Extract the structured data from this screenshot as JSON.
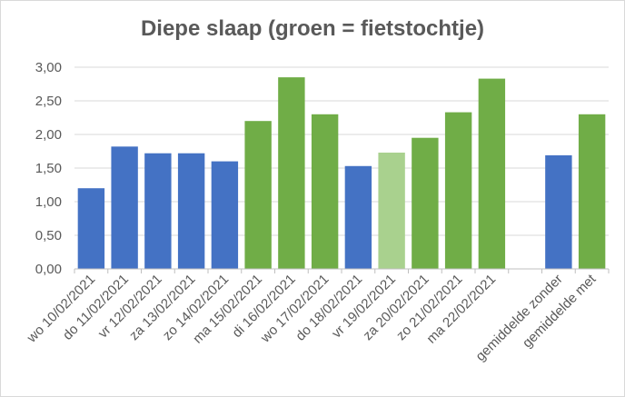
{
  "chart_data": {
    "type": "bar",
    "title": "Diepe slaap (groen = fietstochtje)",
    "categories": [
      "wo 10/02/2021",
      "do 11/02/2021",
      "vr 12/02/2021",
      "za 13/02/2021",
      "zo 14/02/2021",
      "ma 15/02/2021",
      "di 16/02/2021",
      "wo 17/02/2021",
      "do 18/02/2021",
      "vr 19/02/2021",
      "za 20/02/2021",
      "zo 21/02/2021",
      "ma 22/02/2021",
      "",
      "gemiddelde zonder",
      "gemiddelde met"
    ],
    "values": [
      1.2,
      1.82,
      1.72,
      1.72,
      1.6,
      2.2,
      2.85,
      2.3,
      1.53,
      1.73,
      1.95,
      2.33,
      2.83,
      null,
      1.69,
      2.3
    ],
    "colors": [
      "#4472c4",
      "#4472c4",
      "#4472c4",
      "#4472c4",
      "#4472c4",
      "#70ad47",
      "#70ad47",
      "#70ad47",
      "#4472c4",
      "#a9d18e",
      "#70ad47",
      "#70ad47",
      "#70ad47",
      "",
      "#4472c4",
      "#70ad47"
    ],
    "ylim": [
      0,
      3
    ],
    "yticks": [
      "0,00",
      "0,50",
      "1,00",
      "1,50",
      "2,00",
      "2,50",
      "3,00"
    ],
    "xlabel": "",
    "ylabel": "",
    "grid": true
  }
}
